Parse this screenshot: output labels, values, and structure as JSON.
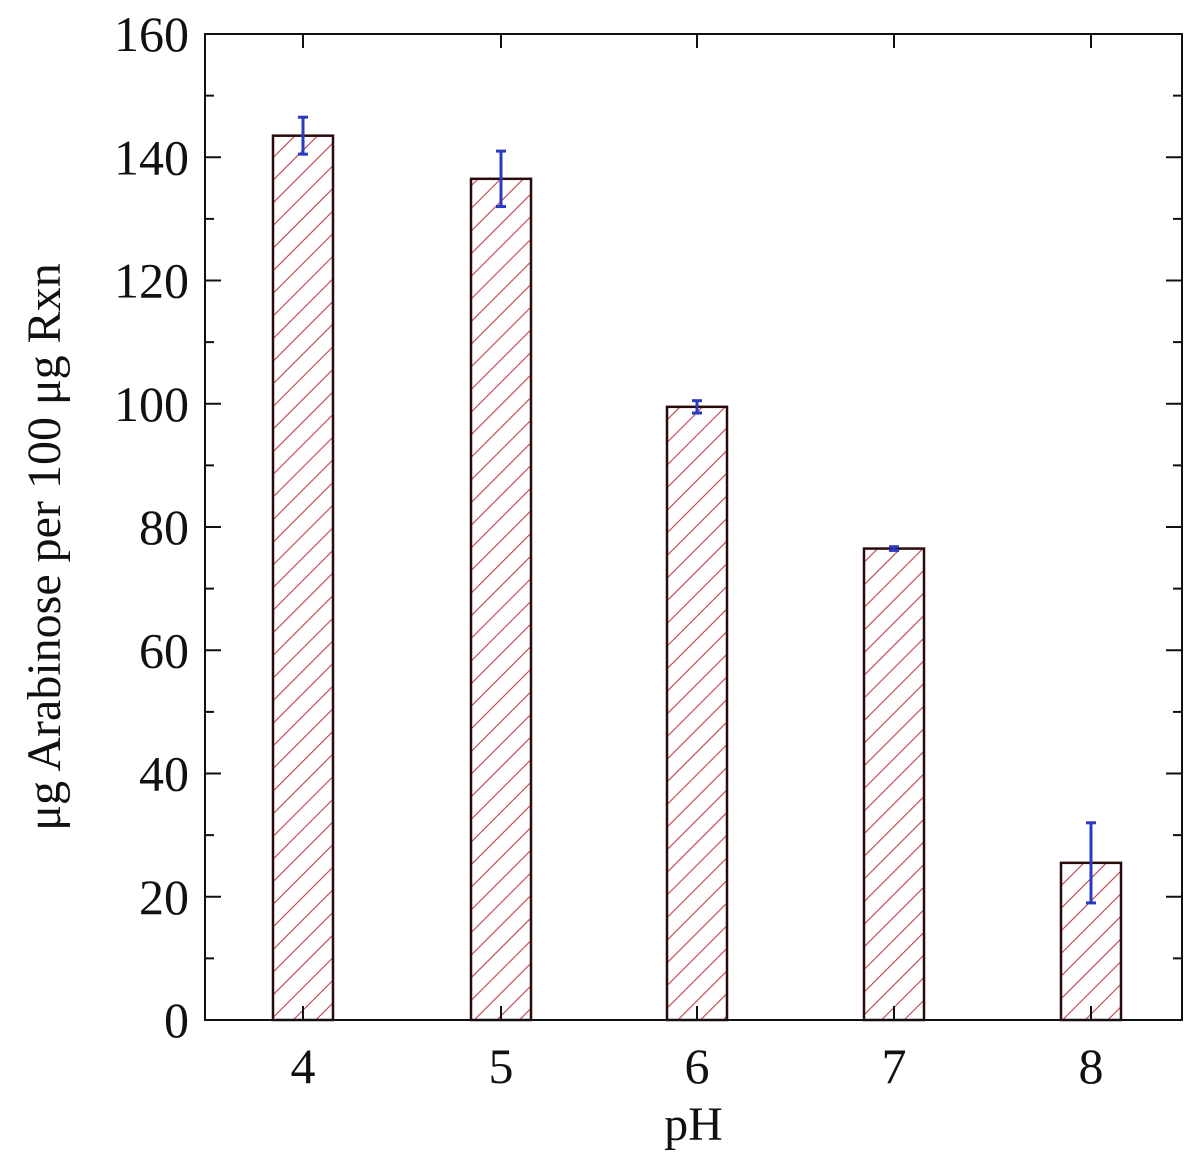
{
  "chart_data": {
    "type": "bar",
    "xlabel": "pH",
    "ylabel": "μg Arabinose per 100 μg Rxn",
    "categories": [
      "4",
      "5",
      "6",
      "7",
      "8"
    ],
    "values": [
      143.5,
      136.5,
      99.5,
      76.5,
      25.5
    ],
    "errors": [
      3.0,
      4.5,
      1.0,
      0.3,
      6.5
    ],
    "ylim": [
      0,
      160
    ],
    "yticks": [
      "0",
      "20",
      "40",
      "60",
      "80",
      "100",
      "120",
      "140",
      "160"
    ],
    "grid": false,
    "legend": "none",
    "colors": {
      "bar_edge": "#2a0a0a",
      "hatch": "#c0404a",
      "error_bar": "#2b3bbf",
      "axis": "#111111"
    }
  }
}
